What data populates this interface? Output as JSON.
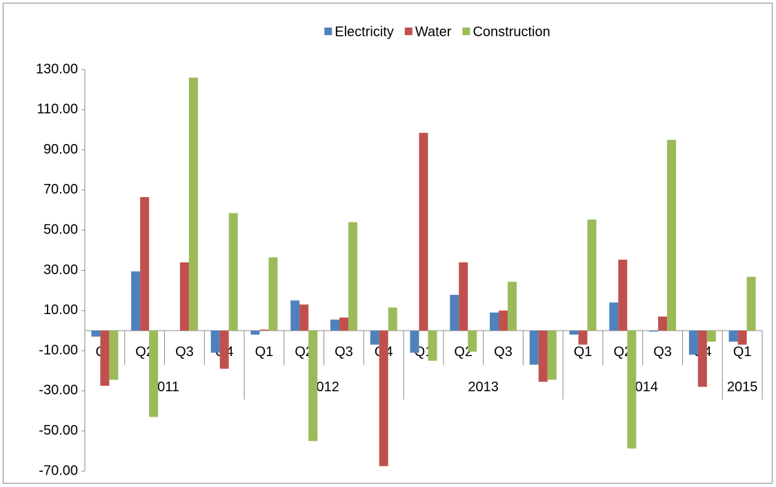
{
  "chart_data": {
    "type": "bar",
    "groups": [
      {
        "label": "2011",
        "categories": [
          "Q1",
          "Q2",
          "Q3",
          "Q4"
        ]
      },
      {
        "label": "2012",
        "categories": [
          "Q1",
          "Q2",
          "Q3",
          "Q4"
        ]
      },
      {
        "label": "2013",
        "categories": [
          "Q1",
          "Q2",
          "Q3",
          "Q4"
        ]
      },
      {
        "label": "2014",
        "categories": [
          "Q1",
          "Q2",
          "Q3",
          "Q4"
        ]
      },
      {
        "label": "2015",
        "categories": [
          "Q1"
        ]
      }
    ],
    "series": [
      {
        "name": "Electricity",
        "color": "#4f81bd",
        "values": [
          -3,
          29.5,
          0,
          -11,
          -2,
          15,
          5.5,
          -7,
          -11,
          17.8,
          9,
          -17,
          -2,
          14,
          -0.5,
          -12,
          -5.5
        ]
      },
      {
        "name": "Water",
        "color": "#c0504d",
        "values": [
          -27.5,
          66.5,
          34,
          -19,
          0.5,
          13,
          6.5,
          -67.5,
          98.5,
          34,
          10,
          -25.5,
          -7,
          35.3,
          7,
          -28,
          -7
        ]
      },
      {
        "name": "Construction",
        "color": "#9bbb59",
        "values": [
          -24.5,
          -43,
          126,
          58.5,
          36.5,
          -55,
          54,
          11.5,
          -15,
          -10.5,
          24.3,
          -24.5,
          55.3,
          -58.7,
          95,
          -5.5,
          26.8
        ]
      }
    ],
    "ylim": [
      -70,
      130
    ],
    "yticks": [
      {
        "value": -70,
        "label": "-70.00"
      },
      {
        "value": -50,
        "label": "-50.00"
      },
      {
        "value": -30,
        "label": "-30.00"
      },
      {
        "value": -10,
        "label": "-10.00"
      },
      {
        "value": 10,
        "label": "10.00"
      },
      {
        "value": 30,
        "label": "30.00"
      },
      {
        "value": 50,
        "label": "50.00"
      },
      {
        "value": 70,
        "label": "70.00"
      },
      {
        "value": 90,
        "label": "90.00"
      },
      {
        "value": 110,
        "label": "110.00"
      },
      {
        "value": 130,
        "label": "130.00"
      }
    ],
    "legend": "top"
  }
}
